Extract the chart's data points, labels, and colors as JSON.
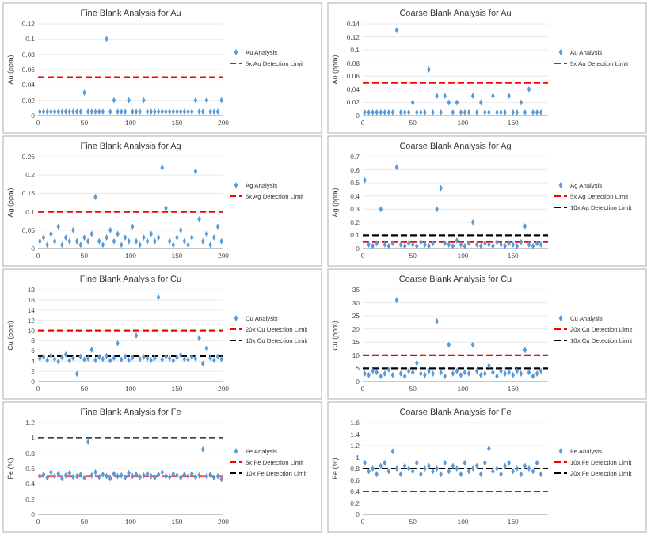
{
  "chart_data": [
    {
      "type": "scatter",
      "title": "Fine Blank Analysis for Au",
      "ylabel": "Au (ppm)",
      "grid": "y",
      "legend": "right",
      "marker": "diamond",
      "xlim": [
        0,
        200
      ],
      "xticks": [
        0,
        50,
        100,
        150,
        200
      ],
      "ylim": [
        0,
        0.12
      ],
      "yticks": [
        0,
        0.02,
        0.04,
        0.06,
        0.08,
        0.1,
        0.12
      ],
      "x": [
        2,
        6,
        10,
        14,
        18,
        22,
        26,
        30,
        34,
        38,
        42,
        46,
        50,
        54,
        58,
        62,
        66,
        70,
        74,
        78,
        82,
        86,
        90,
        94,
        98,
        102,
        106,
        110,
        114,
        118,
        122,
        126,
        130,
        134,
        138,
        142,
        146,
        150,
        154,
        158,
        162,
        166,
        170,
        174,
        178,
        182,
        186,
        190,
        194,
        198
      ],
      "series": [
        {
          "name": "Au Analysis",
          "color": "#5b9bd5",
          "values": [
            0.005,
            0.005,
            0.005,
            0.005,
            0.005,
            0.005,
            0.005,
            0.005,
            0.005,
            0.005,
            0.005,
            0.005,
            0.03,
            0.005,
            0.005,
            0.005,
            0.005,
            0.005,
            0.1,
            0.005,
            0.02,
            0.005,
            0.005,
            0.005,
            0.02,
            0.005,
            0.005,
            0.005,
            0.02,
            0.005,
            0.005,
            0.005,
            0.005,
            0.005,
            0.005,
            0.005,
            0.005,
            0.005,
            0.005,
            0.005,
            0.005,
            0.005,
            0.02,
            0.005,
            0.005,
            0.02,
            0.005,
            0.005,
            0.005,
            0.02
          ]
        }
      ],
      "ref_lines": [
        {
          "axis": "y",
          "value": 0.05,
          "label": "5x Au Detection Limit",
          "color": "#ff0000",
          "line_style": "dashed"
        }
      ]
    },
    {
      "type": "scatter",
      "title": "Coarse Blank Analysis for Au",
      "ylabel": "Au (ppm)",
      "grid": "y",
      "legend": "right",
      "marker": "diamond",
      "xlim": [
        0,
        185
      ],
      "xticks": [
        0,
        50,
        100,
        150
      ],
      "ylim": [
        0,
        0.14
      ],
      "yticks": [
        0,
        0.02,
        0.04,
        0.06,
        0.08,
        0.1,
        0.12,
        0.14
      ],
      "x": [
        2,
        6,
        10,
        14,
        18,
        22,
        26,
        30,
        34,
        38,
        42,
        46,
        50,
        54,
        58,
        62,
        66,
        70,
        74,
        78,
        82,
        86,
        90,
        94,
        98,
        102,
        106,
        110,
        114,
        118,
        122,
        126,
        130,
        134,
        138,
        142,
        146,
        150,
        154,
        158,
        162,
        166,
        170,
        174,
        178
      ],
      "series": [
        {
          "name": "Au Analysis",
          "color": "#5b9bd5",
          "values": [
            0.005,
            0.005,
            0.005,
            0.005,
            0.005,
            0.005,
            0.005,
            0.005,
            0.13,
            0.005,
            0.005,
            0.005,
            0.02,
            0.005,
            0.005,
            0.005,
            0.07,
            0.005,
            0.03,
            0.005,
            0.03,
            0.02,
            0.005,
            0.02,
            0.005,
            0.005,
            0.005,
            0.03,
            0.005,
            0.02,
            0.005,
            0.005,
            0.03,
            0.005,
            0.005,
            0.005,
            0.03,
            0.005,
            0.005,
            0.02,
            0.005,
            0.04,
            0.005,
            0.005,
            0.005
          ]
        }
      ],
      "ref_lines": [
        {
          "axis": "y",
          "value": 0.05,
          "label": "5x Au Detection Limit",
          "color": "#ff0000",
          "line_style": "dashed"
        }
      ]
    },
    {
      "type": "scatter",
      "title": "Fine Blank Analysis for Ag",
      "ylabel": "Ag (ppm)",
      "grid": "y",
      "legend": "right",
      "marker": "diamond",
      "xlim": [
        0,
        200
      ],
      "xticks": [
        0,
        50,
        100,
        150,
        200
      ],
      "ylim": [
        0,
        0.25
      ],
      "yticks": [
        0,
        0.05,
        0.1,
        0.15,
        0.2,
        0.25
      ],
      "x": [
        2,
        6,
        10,
        14,
        18,
        22,
        26,
        30,
        34,
        38,
        42,
        46,
        50,
        54,
        58,
        62,
        66,
        70,
        74,
        78,
        82,
        86,
        90,
        94,
        98,
        102,
        106,
        110,
        114,
        118,
        122,
        126,
        130,
        134,
        138,
        142,
        146,
        150,
        154,
        158,
        162,
        166,
        170,
        174,
        178,
        182,
        186,
        190,
        194,
        198
      ],
      "series": [
        {
          "name": "Ag Analysis",
          "color": "#5b9bd5",
          "values": [
            0.02,
            0.03,
            0.01,
            0.04,
            0.02,
            0.06,
            0.01,
            0.03,
            0.02,
            0.05,
            0.02,
            0.01,
            0.03,
            0.02,
            0.04,
            0.14,
            0.02,
            0.01,
            0.03,
            0.05,
            0.02,
            0.04,
            0.01,
            0.03,
            0.02,
            0.06,
            0.02,
            0.01,
            0.03,
            0.02,
            0.04,
            0.02,
            0.03,
            0.22,
            0.11,
            0.02,
            0.01,
            0.03,
            0.05,
            0.02,
            0.01,
            0.03,
            0.21,
            0.08,
            0.02,
            0.04,
            0.01,
            0.03,
            0.06,
            0.02
          ]
        }
      ],
      "ref_lines": [
        {
          "axis": "y",
          "value": 0.1,
          "label": "5x Ag Detection Limit",
          "color": "#ff0000",
          "line_style": "dashed"
        }
      ]
    },
    {
      "type": "scatter",
      "title": "Coarse Blank Analysis for Ag",
      "ylabel": "Ag (ppm)",
      "grid": "y",
      "legend": "right",
      "marker": "diamond",
      "xlim": [
        0,
        185
      ],
      "xticks": [
        0,
        50,
        100,
        150
      ],
      "ylim": [
        0,
        0.7
      ],
      "yticks": [
        0,
        0.1,
        0.2,
        0.3,
        0.4,
        0.5,
        0.6,
        0.7
      ],
      "x": [
        2,
        6,
        10,
        14,
        18,
        22,
        26,
        30,
        34,
        38,
        42,
        46,
        50,
        54,
        58,
        62,
        66,
        70,
        74,
        78,
        82,
        86,
        90,
        94,
        98,
        102,
        106,
        110,
        114,
        118,
        122,
        126,
        130,
        134,
        138,
        142,
        146,
        150,
        154,
        158,
        162,
        166,
        170,
        174,
        178
      ],
      "series": [
        {
          "name": "Ag Analysis",
          "color": "#5b9bd5",
          "values": [
            0.52,
            0.03,
            0.02,
            0.04,
            0.3,
            0.03,
            0.02,
            0.04,
            0.62,
            0.03,
            0.02,
            0.04,
            0.03,
            0.02,
            0.05,
            0.03,
            0.02,
            0.04,
            0.3,
            0.46,
            0.04,
            0.03,
            0.02,
            0.06,
            0.03,
            0.02,
            0.04,
            0.2,
            0.03,
            0.02,
            0.04,
            0.03,
            0.02,
            0.05,
            0.03,
            0.02,
            0.04,
            0.03,
            0.02,
            0.05,
            0.17,
            0.03,
            0.02,
            0.04,
            0.03
          ]
        }
      ],
      "ref_lines": [
        {
          "axis": "y",
          "value": 0.05,
          "label": "5x Ag Detection Limit",
          "color": "#ff0000",
          "line_style": "dashed"
        },
        {
          "axis": "y",
          "value": 0.1,
          "label": "10x Ag Detection Limit",
          "color": "#000000",
          "line_style": "dashed"
        }
      ]
    },
    {
      "type": "scatter",
      "title": "Fine Blank Analysis for Cu",
      "ylabel": "Cu (ppm)",
      "grid": "y",
      "legend": "right",
      "marker": "diamond",
      "xlim": [
        0,
        200
      ],
      "xticks": [
        0,
        50,
        100,
        150,
        200
      ],
      "ylim": [
        0,
        18
      ],
      "yticks": [
        0,
        2,
        4,
        6,
        8,
        10,
        12,
        14,
        16,
        18
      ],
      "x": [
        2,
        6,
        10,
        14,
        18,
        22,
        26,
        30,
        34,
        38,
        42,
        46,
        50,
        54,
        58,
        62,
        66,
        70,
        74,
        78,
        82,
        86,
        90,
        94,
        98,
        102,
        106,
        110,
        114,
        118,
        122,
        126,
        130,
        134,
        138,
        142,
        146,
        150,
        154,
        158,
        162,
        166,
        170,
        174,
        178,
        182,
        186,
        190,
        194,
        198
      ],
      "series": [
        {
          "name": "Cu Analysis",
          "color": "#5b9bd5",
          "values": [
            4.5,
            4.8,
            4.2,
            5.1,
            4.4,
            3.9,
            4.7,
            5.3,
            4.1,
            4.6,
            1.5,
            4.9,
            4.3,
            4.5,
            6.2,
            4.2,
            4.8,
            4.4,
            5.0,
            4.1,
            4.6,
            7.5,
            4.3,
            4.9,
            4.2,
            4.7,
            9.0,
            4.4,
            4.8,
            4.5,
            4.2,
            4.6,
            16.5,
            4.3,
            4.9,
            4.5,
            4.1,
            4.7,
            5.2,
            4.4,
            4.3,
            4.8,
            4.5,
            8.5,
            3.5,
            6.5,
            4.6,
            4.2,
            4.9,
            4.4
          ]
        }
      ],
      "ref_lines": [
        {
          "axis": "y",
          "value": 10,
          "label": "20x Cu Detection Limit",
          "color": "#ff0000",
          "line_style": "dashed"
        },
        {
          "axis": "y",
          "value": 5,
          "label": "10x Cu Detection Limit",
          "color": "#000000",
          "line_style": "dashed"
        }
      ]
    },
    {
      "type": "scatter",
      "title": "Coarse Blank Analysis for Cu",
      "ylabel": "Cu (ppm)",
      "grid": "y",
      "legend": "right",
      "marker": "diamond",
      "xlim": [
        0,
        185
      ],
      "xticks": [
        0,
        50,
        100,
        150
      ],
      "ylim": [
        0,
        35
      ],
      "yticks": [
        0,
        5,
        10,
        15,
        20,
        25,
        30,
        35
      ],
      "x": [
        2,
        6,
        10,
        14,
        18,
        22,
        26,
        30,
        34,
        38,
        42,
        46,
        50,
        54,
        58,
        62,
        66,
        70,
        74,
        78,
        82,
        86,
        90,
        94,
        98,
        102,
        106,
        110,
        114,
        118,
        122,
        126,
        130,
        134,
        138,
        142,
        146,
        150,
        154,
        158,
        162,
        166,
        170,
        174,
        178
      ],
      "series": [
        {
          "name": "Cu Analysis",
          "color": "#5b9bd5",
          "values": [
            3,
            2.5,
            4,
            3.5,
            2,
            3,
            4.5,
            2.5,
            31,
            3,
            2,
            4,
            3.5,
            7,
            3,
            2.5,
            4,
            3,
            23,
            3.5,
            2,
            14,
            3,
            4,
            2.5,
            3.5,
            3,
            14,
            4,
            2.5,
            3,
            6,
            3.5,
            2,
            4,
            3,
            3.5,
            2.5,
            4,
            3,
            12,
            3.5,
            2,
            3,
            4
          ]
        }
      ],
      "ref_lines": [
        {
          "axis": "y",
          "value": 10,
          "label": "20x Cu Detection Limit",
          "color": "#ff0000",
          "line_style": "dashed"
        },
        {
          "axis": "y",
          "value": 5,
          "label": "10x Cu Detection Limit",
          "color": "#000000",
          "line_style": "dashed"
        }
      ]
    },
    {
      "type": "scatter",
      "title": "Fine Blank Analysis for Fe",
      "ylabel": "Fe (%)",
      "grid": "y",
      "legend": "right",
      "marker": "diamond",
      "xlim": [
        0,
        200
      ],
      "xticks": [
        0,
        50,
        100,
        150,
        200
      ],
      "ylim": [
        0,
        1.2
      ],
      "yticks": [
        0,
        0.2,
        0.4,
        0.6,
        0.8,
        1,
        1.2
      ],
      "x": [
        2,
        6,
        10,
        14,
        18,
        22,
        26,
        30,
        34,
        38,
        42,
        46,
        50,
        54,
        58,
        62,
        66,
        70,
        74,
        78,
        82,
        86,
        90,
        94,
        98,
        102,
        106,
        110,
        114,
        118,
        122,
        126,
        130,
        134,
        138,
        142,
        146,
        150,
        154,
        158,
        162,
        166,
        170,
        174,
        178,
        182,
        186,
        190,
        194,
        198
      ],
      "series": [
        {
          "name": "Fe Analysis",
          "color": "#5b9bd5",
          "values": [
            0.5,
            0.52,
            0.48,
            0.55,
            0.5,
            0.53,
            0.47,
            0.51,
            0.54,
            0.49,
            0.5,
            0.52,
            0.48,
            0.95,
            0.51,
            0.55,
            0.49,
            0.52,
            0.5,
            0.47,
            0.53,
            0.5,
            0.51,
            0.48,
            0.54,
            0.5,
            0.52,
            0.49,
            0.51,
            0.53,
            0.5,
            0.48,
            0.52,
            0.55,
            0.5,
            0.49,
            0.53,
            0.51,
            0.48,
            0.52,
            0.5,
            0.53,
            0.49,
            0.51,
            0.85,
            0.5,
            0.52,
            0.48,
            0.5,
            0.46
          ]
        }
      ],
      "ref_lines": [
        {
          "axis": "y",
          "value": 0.5,
          "label": "5x Fe Detection Limit",
          "color": "#ff0000",
          "line_style": "dashed"
        },
        {
          "axis": "y",
          "value": 1,
          "label": "10x Fe Detection Limit",
          "color": "#000000",
          "line_style": "dashed"
        }
      ]
    },
    {
      "type": "scatter",
      "title": "Coarse Blank Analysis for Fe",
      "ylabel": "Fe (%)",
      "grid": "y",
      "legend": "right",
      "marker": "diamond",
      "xlim": [
        0,
        185
      ],
      "xticks": [
        0,
        50,
        100,
        150
      ],
      "ylim": [
        0,
        1.6
      ],
      "yticks": [
        0,
        0.2,
        0.4,
        0.6,
        0.8,
        1,
        1.2,
        1.4,
        1.6
      ],
      "x": [
        2,
        6,
        10,
        14,
        18,
        22,
        26,
        30,
        34,
        38,
        42,
        46,
        50,
        54,
        58,
        62,
        66,
        70,
        74,
        78,
        82,
        86,
        90,
        94,
        98,
        102,
        106,
        110,
        114,
        118,
        122,
        126,
        130,
        134,
        138,
        142,
        146,
        150,
        154,
        158,
        162,
        166,
        170,
        174,
        178
      ],
      "series": [
        {
          "name": "Fe Analysis",
          "color": "#5b9bd5",
          "values": [
            0.9,
            0.75,
            0.8,
            0.7,
            0.85,
            0.9,
            0.75,
            1.1,
            0.8,
            0.7,
            0.85,
            0.8,
            0.75,
            0.9,
            0.7,
            0.8,
            0.85,
            0.75,
            0.8,
            0.7,
            0.9,
            0.75,
            0.85,
            0.8,
            0.7,
            0.9,
            0.75,
            0.8,
            0.85,
            0.7,
            0.9,
            1.15,
            0.75,
            0.8,
            0.7,
            0.85,
            0.9,
            0.75,
            0.8,
            0.7,
            0.85,
            0.8,
            0.75,
            0.9,
            0.7
          ]
        }
      ],
      "ref_lines": [
        {
          "axis": "y",
          "value": 0.4,
          "label": "10x Fe Detection Limit",
          "color": "#ff0000",
          "line_style": "dashed"
        },
        {
          "axis": "y",
          "value": 0.8,
          "label": "20x Fe Detection Limit",
          "color": "#000000",
          "line_style": "dashed"
        }
      ]
    }
  ]
}
